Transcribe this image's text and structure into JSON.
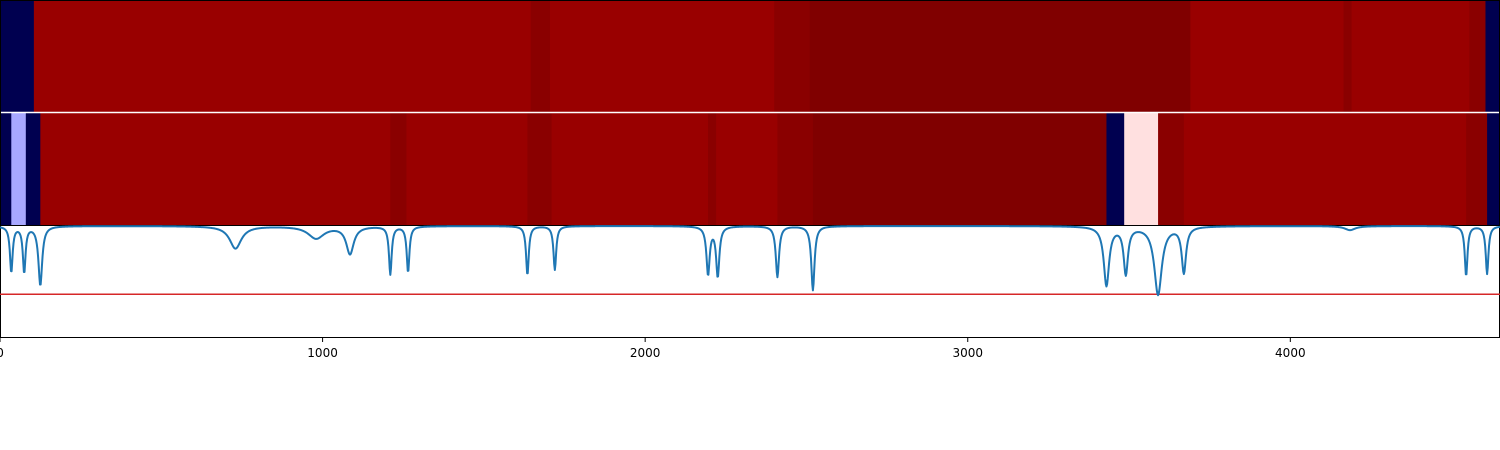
{
  "chart_data": {
    "type": "heatmap",
    "title": "",
    "xlabel": "",
    "ylabel": "",
    "xlim": [
      0,
      4650
    ],
    "x_ticks": [
      {
        "value": 0,
        "label": "0"
      },
      {
        "value": 1000,
        "label": "1000"
      },
      {
        "value": 2000,
        "label": "2000"
      },
      {
        "value": 3000,
        "label": "3000"
      },
      {
        "value": 4000,
        "label": "4000"
      }
    ],
    "colors": {
      "bright_red": "#990000",
      "mid_red": "#8a0000",
      "dark_red": "#800000",
      "navy": "#000050",
      "lavender": "#a8a8ff",
      "pale_pink": "#ffe0e0",
      "line": "#1f77b4",
      "threshold": "#d62728",
      "divider": "#ffffff"
    },
    "heatmap_rows": [
      {
        "segments": [
          {
            "start": 0,
            "end": 105,
            "color": "navy"
          },
          {
            "start": 105,
            "end": 1645,
            "color": "bright_red"
          },
          {
            "start": 1645,
            "end": 1705,
            "color": "mid_red"
          },
          {
            "start": 1705,
            "end": 2400,
            "color": "bright_red"
          },
          {
            "start": 2400,
            "end": 2510,
            "color": "mid_red"
          },
          {
            "start": 2510,
            "end": 3690,
            "color": "dark_red"
          },
          {
            "start": 3690,
            "end": 4165,
            "color": "bright_red"
          },
          {
            "start": 4165,
            "end": 4190,
            "color": "mid_red"
          },
          {
            "start": 4190,
            "end": 4555,
            "color": "bright_red"
          },
          {
            "start": 4555,
            "end": 4605,
            "color": "mid_red"
          },
          {
            "start": 4605,
            "end": 4650,
            "color": "navy"
          }
        ]
      },
      {
        "segments": [
          {
            "start": 0,
            "end": 35,
            "color": "navy"
          },
          {
            "start": 35,
            "end": 80,
            "color": "lavender"
          },
          {
            "start": 80,
            "end": 125,
            "color": "navy"
          },
          {
            "start": 125,
            "end": 1210,
            "color": "bright_red"
          },
          {
            "start": 1210,
            "end": 1260,
            "color": "mid_red"
          },
          {
            "start": 1260,
            "end": 1635,
            "color": "bright_red"
          },
          {
            "start": 1635,
            "end": 1710,
            "color": "mid_red"
          },
          {
            "start": 1710,
            "end": 2195,
            "color": "bright_red"
          },
          {
            "start": 2195,
            "end": 2220,
            "color": "mid_red"
          },
          {
            "start": 2220,
            "end": 2410,
            "color": "bright_red"
          },
          {
            "start": 2410,
            "end": 2520,
            "color": "mid_red"
          },
          {
            "start": 2520,
            "end": 3430,
            "color": "dark_red"
          },
          {
            "start": 3430,
            "end": 3485,
            "color": "navy"
          },
          {
            "start": 3485,
            "end": 3590,
            "color": "pale_pink"
          },
          {
            "start": 3590,
            "end": 3670,
            "color": "mid_red"
          },
          {
            "start": 3670,
            "end": 4545,
            "color": "bright_red"
          },
          {
            "start": 4545,
            "end": 4610,
            "color": "mid_red"
          },
          {
            "start": 4610,
            "end": 4650,
            "color": "navy"
          }
        ]
      }
    ],
    "series": [
      {
        "style": "line",
        "baseline": 0,
        "ylim": [
          -1.1,
          0
        ],
        "dips": [
          {
            "center": 35,
            "depth": 0.45,
            "width": 5
          },
          {
            "center": 75,
            "depth": 0.45,
            "width": 5
          },
          {
            "center": 125,
            "depth": 0.58,
            "width": 7
          },
          {
            "center": 730,
            "depth": 0.22,
            "width": 22
          },
          {
            "center": 980,
            "depth": 0.12,
            "width": 30
          },
          {
            "center": 1085,
            "depth": 0.27,
            "width": 14
          },
          {
            "center": 1210,
            "depth": 0.47,
            "width": 5
          },
          {
            "center": 1265,
            "depth": 0.45,
            "width": 5
          },
          {
            "center": 1635,
            "depth": 0.48,
            "width": 5
          },
          {
            "center": 1720,
            "depth": 0.43,
            "width": 5
          },
          {
            "center": 2195,
            "depth": 0.47,
            "width": 6
          },
          {
            "center": 2225,
            "depth": 0.49,
            "width": 6
          },
          {
            "center": 2410,
            "depth": 0.5,
            "width": 6
          },
          {
            "center": 2520,
            "depth": 0.63,
            "width": 6
          },
          {
            "center": 3430,
            "depth": 0.58,
            "width": 10
          },
          {
            "center": 3490,
            "depth": 0.46,
            "width": 8
          },
          {
            "center": 3590,
            "depth": 0.67,
            "width": 14
          },
          {
            "center": 3670,
            "depth": 0.45,
            "width": 8
          },
          {
            "center": 4185,
            "depth": 0.04,
            "width": 20
          },
          {
            "center": 4545,
            "depth": 0.49,
            "width": 5
          },
          {
            "center": 4610,
            "depth": 0.47,
            "width": 5
          }
        ]
      },
      {
        "style": "hline",
        "y": -0.67
      }
    ]
  }
}
